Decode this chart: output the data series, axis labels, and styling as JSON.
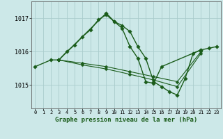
{
  "title": "Graphe pression niveau de la mer (hPa)",
  "background_color": "#cce8e8",
  "grid_color": "#aacccc",
  "line_color": "#1a5c1a",
  "xlim": [
    -0.5,
    23.5
  ],
  "ylim": [
    1014.3,
    1017.5
  ],
  "yticks": [
    1015,
    1016,
    1017
  ],
  "xticks": [
    0,
    1,
    2,
    3,
    4,
    5,
    6,
    7,
    8,
    9,
    10,
    11,
    12,
    13,
    14,
    15,
    16,
    17,
    18,
    19,
    20,
    21,
    22,
    23
  ],
  "series": [
    {
      "x": [
        0,
        2,
        3,
        4,
        5,
        6,
        7,
        8,
        9,
        10,
        11,
        12,
        13,
        14,
        15,
        16,
        17,
        18,
        19,
        20,
        21,
        22,
        23
      ],
      "y": [
        1015.55,
        1015.75,
        1015.75,
        1016.0,
        1016.2,
        1016.45,
        1016.65,
        1016.95,
        1017.1,
        1016.9,
        1016.78,
        1016.6,
        1016.15,
        1015.8,
        1015.1,
        1014.95,
        1014.8,
        1014.7,
        1015.2,
        1015.95,
        1016.05,
        1016.1,
        1016.15
      ]
    },
    {
      "x": [
        3,
        9,
        10,
        11,
        12,
        13,
        14,
        15,
        16,
        21
      ],
      "y": [
        1015.75,
        1017.15,
        1016.9,
        1016.7,
        1016.15,
        1015.8,
        1015.1,
        1015.05,
        1015.55,
        1016.05
      ]
    },
    {
      "x": [
        3,
        6,
        9,
        12,
        15,
        18,
        21
      ],
      "y": [
        1015.75,
        1015.65,
        1015.55,
        1015.4,
        1015.25,
        1015.1,
        1016.0
      ]
    },
    {
      "x": [
        3,
        6,
        9,
        12,
        15,
        18,
        21
      ],
      "y": [
        1015.75,
        1015.6,
        1015.48,
        1015.32,
        1015.15,
        1014.95,
        1015.95
      ]
    }
  ]
}
